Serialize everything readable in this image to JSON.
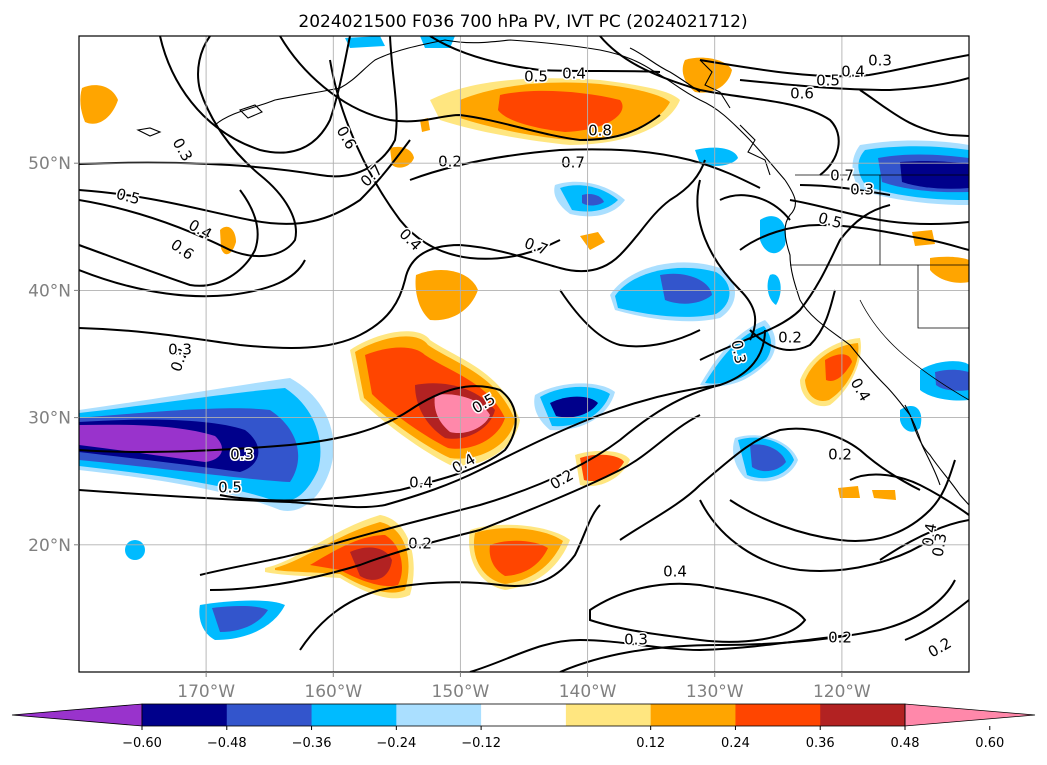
{
  "chart_data": {
    "type": "map",
    "title": "2024021500 F036 700 hPa PV, IVT PC (2024021712)",
    "lon_range": [
      -180,
      -110
    ],
    "lat_range": [
      10,
      60
    ],
    "lon_ticks": [
      "170°W",
      "160°W",
      "150°W",
      "140°W",
      "130°W",
      "120°W"
    ],
    "lat_ticks": [
      "20°N",
      "30°N",
      "40°N",
      "50°N"
    ],
    "grid": true,
    "colorbar": {
      "ticks": [
        "−0.60",
        "−0.48",
        "−0.36",
        "−0.24",
        "−0.12",
        "0.12",
        "0.24",
        "0.36",
        "0.48",
        "0.60"
      ],
      "colors": [
        "#9933cc",
        "#00008b",
        "#3355cc",
        "#00bbff",
        "#aadfff",
        "#ffffff",
        "#ffe680",
        "#ffa500",
        "#ff4500",
        "#b22222",
        "#ff88aa"
      ],
      "extend": "both"
    },
    "contour_labels": [
      "0.5",
      "0.4",
      "0.3",
      "0.4",
      "0.5",
      "0.6",
      "0.8",
      "0.3",
      "0.7",
      "0.7",
      "0.6",
      "0.5",
      "0.4",
      "0.6",
      "0.7",
      "0.7",
      "0.3",
      "0.2",
      "0.2",
      "0.3",
      "0.4",
      "0.3",
      "0.5",
      "0.4",
      "0.5",
      "0.4",
      "0.2",
      "0.2",
      "0.4",
      "0.2",
      "0.3",
      "0.4",
      "0.2",
      "0.3",
      "0.2",
      "0.3",
      "0.5",
      "0.4",
      "0.2"
    ]
  }
}
